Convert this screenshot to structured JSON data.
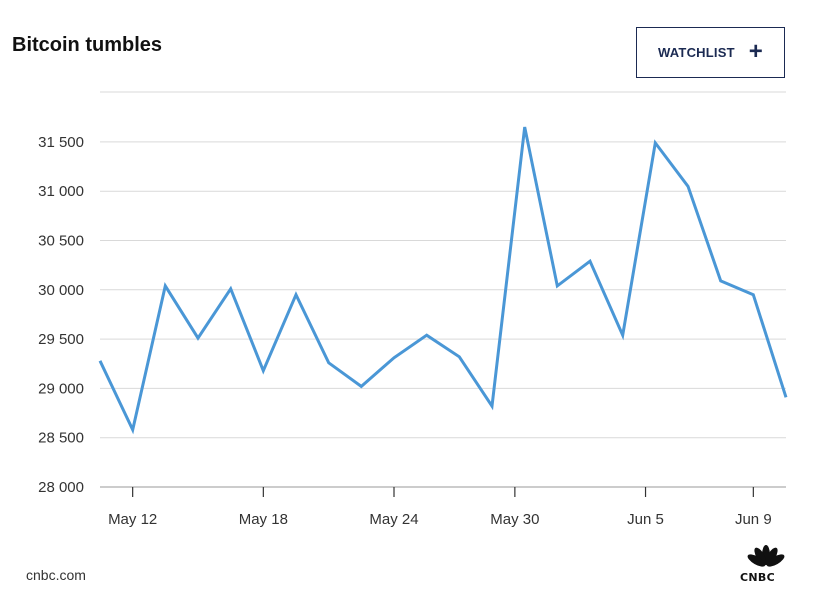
{
  "header": {
    "title": "Bitcoin tumbles",
    "watchlist_label": "WATCHLIST",
    "watchlist_icon": "plus-icon"
  },
  "footer": {
    "source": "cnbc.com",
    "logo_text": "CNBC",
    "logo_icon": "cnbc-peacock-icon"
  },
  "colors": {
    "line": "#4a97d6",
    "grid": "#d9d9d9",
    "axis_text": "#333333",
    "button_border": "#1b2a52"
  },
  "chart_data": {
    "type": "line",
    "title": "Bitcoin tumbles",
    "xlabel": "",
    "ylabel": "",
    "ylim": [
      28000,
      32000
    ],
    "yticks": [
      28000,
      28500,
      29000,
      29500,
      30000,
      30500,
      31000,
      31500
    ],
    "ytick_labels": [
      "28 000",
      "28 500",
      "29 000",
      "29 500",
      "30 000",
      "30 500",
      "31 000",
      "31 500"
    ],
    "xticks": [
      {
        "label": "May 12",
        "index": 1
      },
      {
        "label": "May 18",
        "index": 5
      },
      {
        "label": "May 24",
        "index": 9
      },
      {
        "label": "May 30",
        "index": 12.7
      },
      {
        "label": "Jun 5",
        "index": 16.7
      },
      {
        "label": "Jun 9",
        "index": 20
      }
    ],
    "grid": true,
    "series": [
      {
        "values": [
          29280,
          28580,
          30040,
          29510,
          30010,
          29180,
          29950,
          29260,
          29020,
          29310,
          29540,
          29320,
          28820,
          31650,
          30040,
          30290,
          29540,
          31490,
          31050,
          30090,
          29950,
          28910
        ]
      }
    ]
  }
}
